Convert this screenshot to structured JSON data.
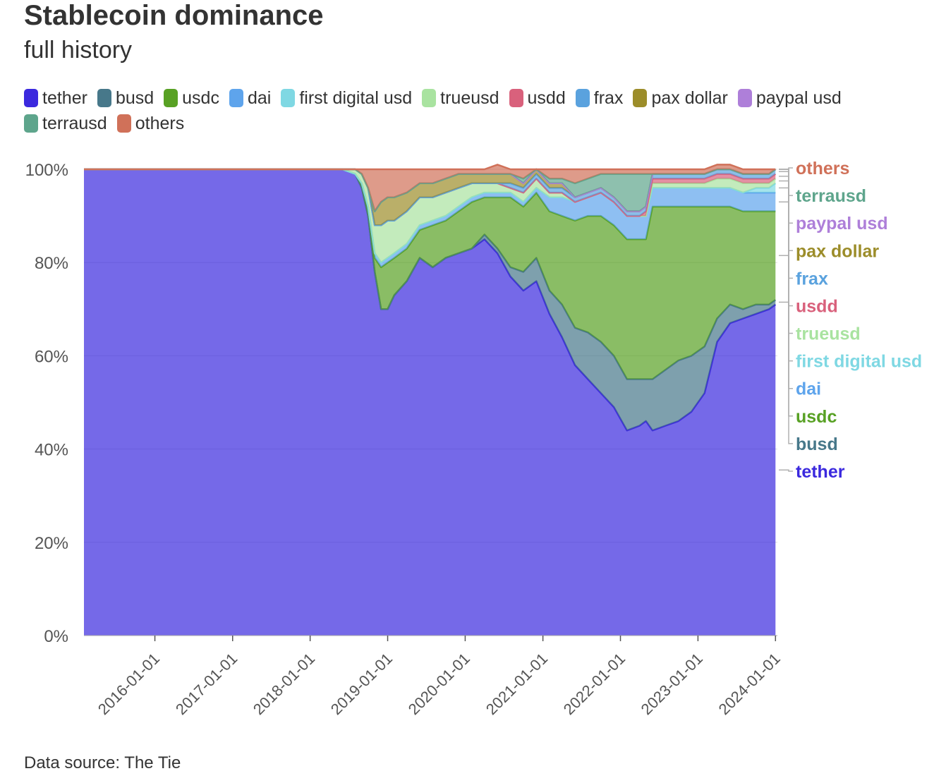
{
  "title": "Stablecoin dominance",
  "subtitle": "full history",
  "source": "Data source: The Tie",
  "chart_data": {
    "type": "area",
    "stacked": "percent",
    "title": "Stablecoin dominance",
    "subtitle": "full history",
    "xlabel": "",
    "ylabel": "",
    "ylim": [
      0,
      100
    ],
    "y_ticks": [
      "0%",
      "20%",
      "40%",
      "60%",
      "80%",
      "100%"
    ],
    "x_ticks": [
      "2016-01-01",
      "2017-01-01",
      "2018-01-01",
      "2019-01-01",
      "2020-01-01",
      "2021-01-01",
      "2022-01-01",
      "2023-01-01",
      "2024-01-01"
    ],
    "grid": true,
    "legend_position": "top",
    "x": [
      "2015-02-01",
      "2016-01-01",
      "2017-01-01",
      "2018-01-01",
      "2018-06-01",
      "2018-08-01",
      "2018-09-01",
      "2018-10-01",
      "2018-11-01",
      "2018-12-01",
      "2019-01-01",
      "2019-02-01",
      "2019-04-01",
      "2019-06-01",
      "2019-08-01",
      "2019-10-01",
      "2019-12-01",
      "2020-02-01",
      "2020-04-01",
      "2020-06-01",
      "2020-08-01",
      "2020-10-01",
      "2020-12-01",
      "2021-02-01",
      "2021-04-01",
      "2021-06-01",
      "2021-08-01",
      "2021-10-01",
      "2021-12-01",
      "2022-02-01",
      "2022-04-01",
      "2022-05-01",
      "2022-06-01",
      "2022-08-01",
      "2022-10-01",
      "2022-12-01",
      "2023-02-01",
      "2023-04-01",
      "2023-06-01",
      "2023-08-01",
      "2023-10-01",
      "2023-12-01",
      "2024-01-01"
    ],
    "series": [
      {
        "name": "tether",
        "color": "#3b29de",
        "values": [
          100,
          100,
          100,
          100,
          100,
          99,
          96,
          90,
          78,
          70,
          70,
          73,
          76,
          81,
          79,
          81,
          82,
          83,
          85,
          82,
          77,
          74,
          76,
          69,
          64,
          58,
          55,
          52,
          49,
          44,
          45,
          46,
          44,
          45,
          46,
          48,
          52,
          63,
          67,
          68,
          69,
          70,
          71
        ]
      },
      {
        "name": "busd",
        "color": "#47788a",
        "values": [
          0,
          0,
          0,
          0,
          0,
          0,
          0,
          0,
          0,
          0,
          0,
          0,
          0,
          0,
          0,
          0,
          0,
          0,
          1,
          1,
          2,
          4,
          5,
          5,
          7,
          8,
          10,
          11,
          11,
          11,
          10,
          9,
          11,
          12,
          13,
          12,
          10,
          5,
          4,
          2,
          2,
          1,
          1
        ]
      },
      {
        "name": "usdc",
        "color": "#58a124",
        "values": [
          0,
          0,
          0,
          0,
          0,
          0,
          1,
          2,
          3,
          9,
          10,
          8,
          7,
          6,
          9,
          8,
          9,
          10,
          8,
          11,
          15,
          14,
          14,
          17,
          19,
          23,
          25,
          27,
          28,
          30,
          30,
          30,
          37,
          35,
          33,
          32,
          30,
          24,
          21,
          21,
          20,
          20,
          19
        ]
      },
      {
        "name": "dai",
        "color": "#5ea4ec",
        "values": [
          0,
          0,
          0,
          0,
          0,
          0,
          0,
          0,
          1,
          1,
          1,
          1,
          1,
          1,
          1,
          1,
          1,
          1,
          1,
          1,
          1,
          1,
          1,
          3,
          4,
          4,
          4,
          5,
          5,
          5,
          5,
          5,
          4,
          4,
          4,
          4,
          4,
          4,
          4,
          4,
          4,
          4,
          4
        ]
      },
      {
        "name": "first digital usd",
        "color": "#7fd8e3",
        "values": [
          0,
          0,
          0,
          0,
          0,
          0,
          0,
          0,
          0,
          0,
          0,
          0,
          0,
          0,
          0,
          0,
          0,
          0,
          0,
          0,
          0,
          0,
          0,
          0,
          0,
          0,
          0,
          0,
          0,
          0,
          0,
          0,
          0,
          0,
          0,
          0,
          0,
          0,
          0,
          0,
          1,
          1,
          2
        ]
      },
      {
        "name": "trueusd",
        "color": "#a9e3a0",
        "values": [
          0,
          0,
          0,
          0,
          0,
          1,
          2,
          4,
          6,
          8,
          8,
          7,
          7,
          6,
          5,
          5,
          4,
          3,
          2,
          2,
          1,
          2,
          2,
          1,
          1,
          0,
          0,
          0,
          0,
          0,
          0,
          0,
          1,
          1,
          1,
          1,
          1,
          2,
          2,
          2,
          1,
          1,
          1
        ]
      },
      {
        "name": "usdd",
        "color": "#d9617c",
        "values": [
          0,
          0,
          0,
          0,
          0,
          0,
          0,
          0,
          0,
          0,
          0,
          0,
          0,
          0,
          0,
          0,
          0,
          0,
          0,
          0,
          0,
          0,
          0,
          0,
          0,
          0,
          0,
          0,
          0,
          0,
          0,
          1,
          1,
          1,
          1,
          1,
          1,
          1,
          1,
          1,
          1,
          1,
          1
        ]
      },
      {
        "name": "frax",
        "color": "#5aa2de",
        "values": [
          0,
          0,
          0,
          0,
          0,
          0,
          0,
          0,
          0,
          0,
          0,
          0,
          0,
          0,
          0,
          0,
          0,
          0,
          0,
          0,
          1,
          1,
          1,
          1,
          1,
          1,
          1,
          1,
          1,
          1,
          1,
          1,
          1,
          1,
          1,
          1,
          1,
          1,
          1,
          1,
          1,
          1,
          1
        ]
      },
      {
        "name": "pax dollar",
        "color": "#9c8d2a",
        "values": [
          0,
          0,
          0,
          0,
          0,
          0,
          0,
          0,
          3,
          5,
          5,
          5,
          4,
          3,
          3,
          3,
          3,
          2,
          2,
          2,
          2,
          1,
          1,
          1,
          1,
          0,
          0,
          0,
          0,
          0,
          0,
          0,
          0,
          0,
          0,
          0,
          0,
          0,
          0,
          0,
          0,
          0,
          0
        ]
      },
      {
        "name": "paypal usd",
        "color": "#ae7fd9",
        "values": [
          0,
          0,
          0,
          0,
          0,
          0,
          0,
          0,
          0,
          0,
          0,
          0,
          0,
          0,
          0,
          0,
          0,
          0,
          0,
          0,
          0,
          0,
          0,
          0,
          0,
          0,
          0,
          0,
          0,
          0,
          0,
          0,
          0,
          0,
          0,
          0,
          0,
          0,
          0,
          0,
          0,
          0,
          0
        ]
      },
      {
        "name": "terrausd",
        "color": "#5ea58c",
        "values": [
          0,
          0,
          0,
          0,
          0,
          0,
          0,
          0,
          0,
          0,
          0,
          0,
          0,
          0,
          0,
          0,
          0,
          0,
          0,
          0,
          0,
          1,
          0,
          1,
          1,
          3,
          3,
          3,
          5,
          8,
          8,
          7,
          0,
          0,
          0,
          0,
          0,
          0,
          0,
          0,
          0,
          0,
          0
        ]
      },
      {
        "name": "others",
        "color": "#d07159",
        "values": [
          0,
          0,
          0,
          0,
          0,
          0,
          1,
          4,
          9,
          7,
          6,
          6,
          5,
          3,
          3,
          2,
          1,
          1,
          1,
          2,
          1,
          2,
          0,
          2,
          2,
          3,
          2,
          1,
          1,
          1,
          1,
          1,
          1,
          1,
          1,
          1,
          1,
          1,
          1,
          1,
          1,
          1,
          0
        ]
      }
    ]
  }
}
